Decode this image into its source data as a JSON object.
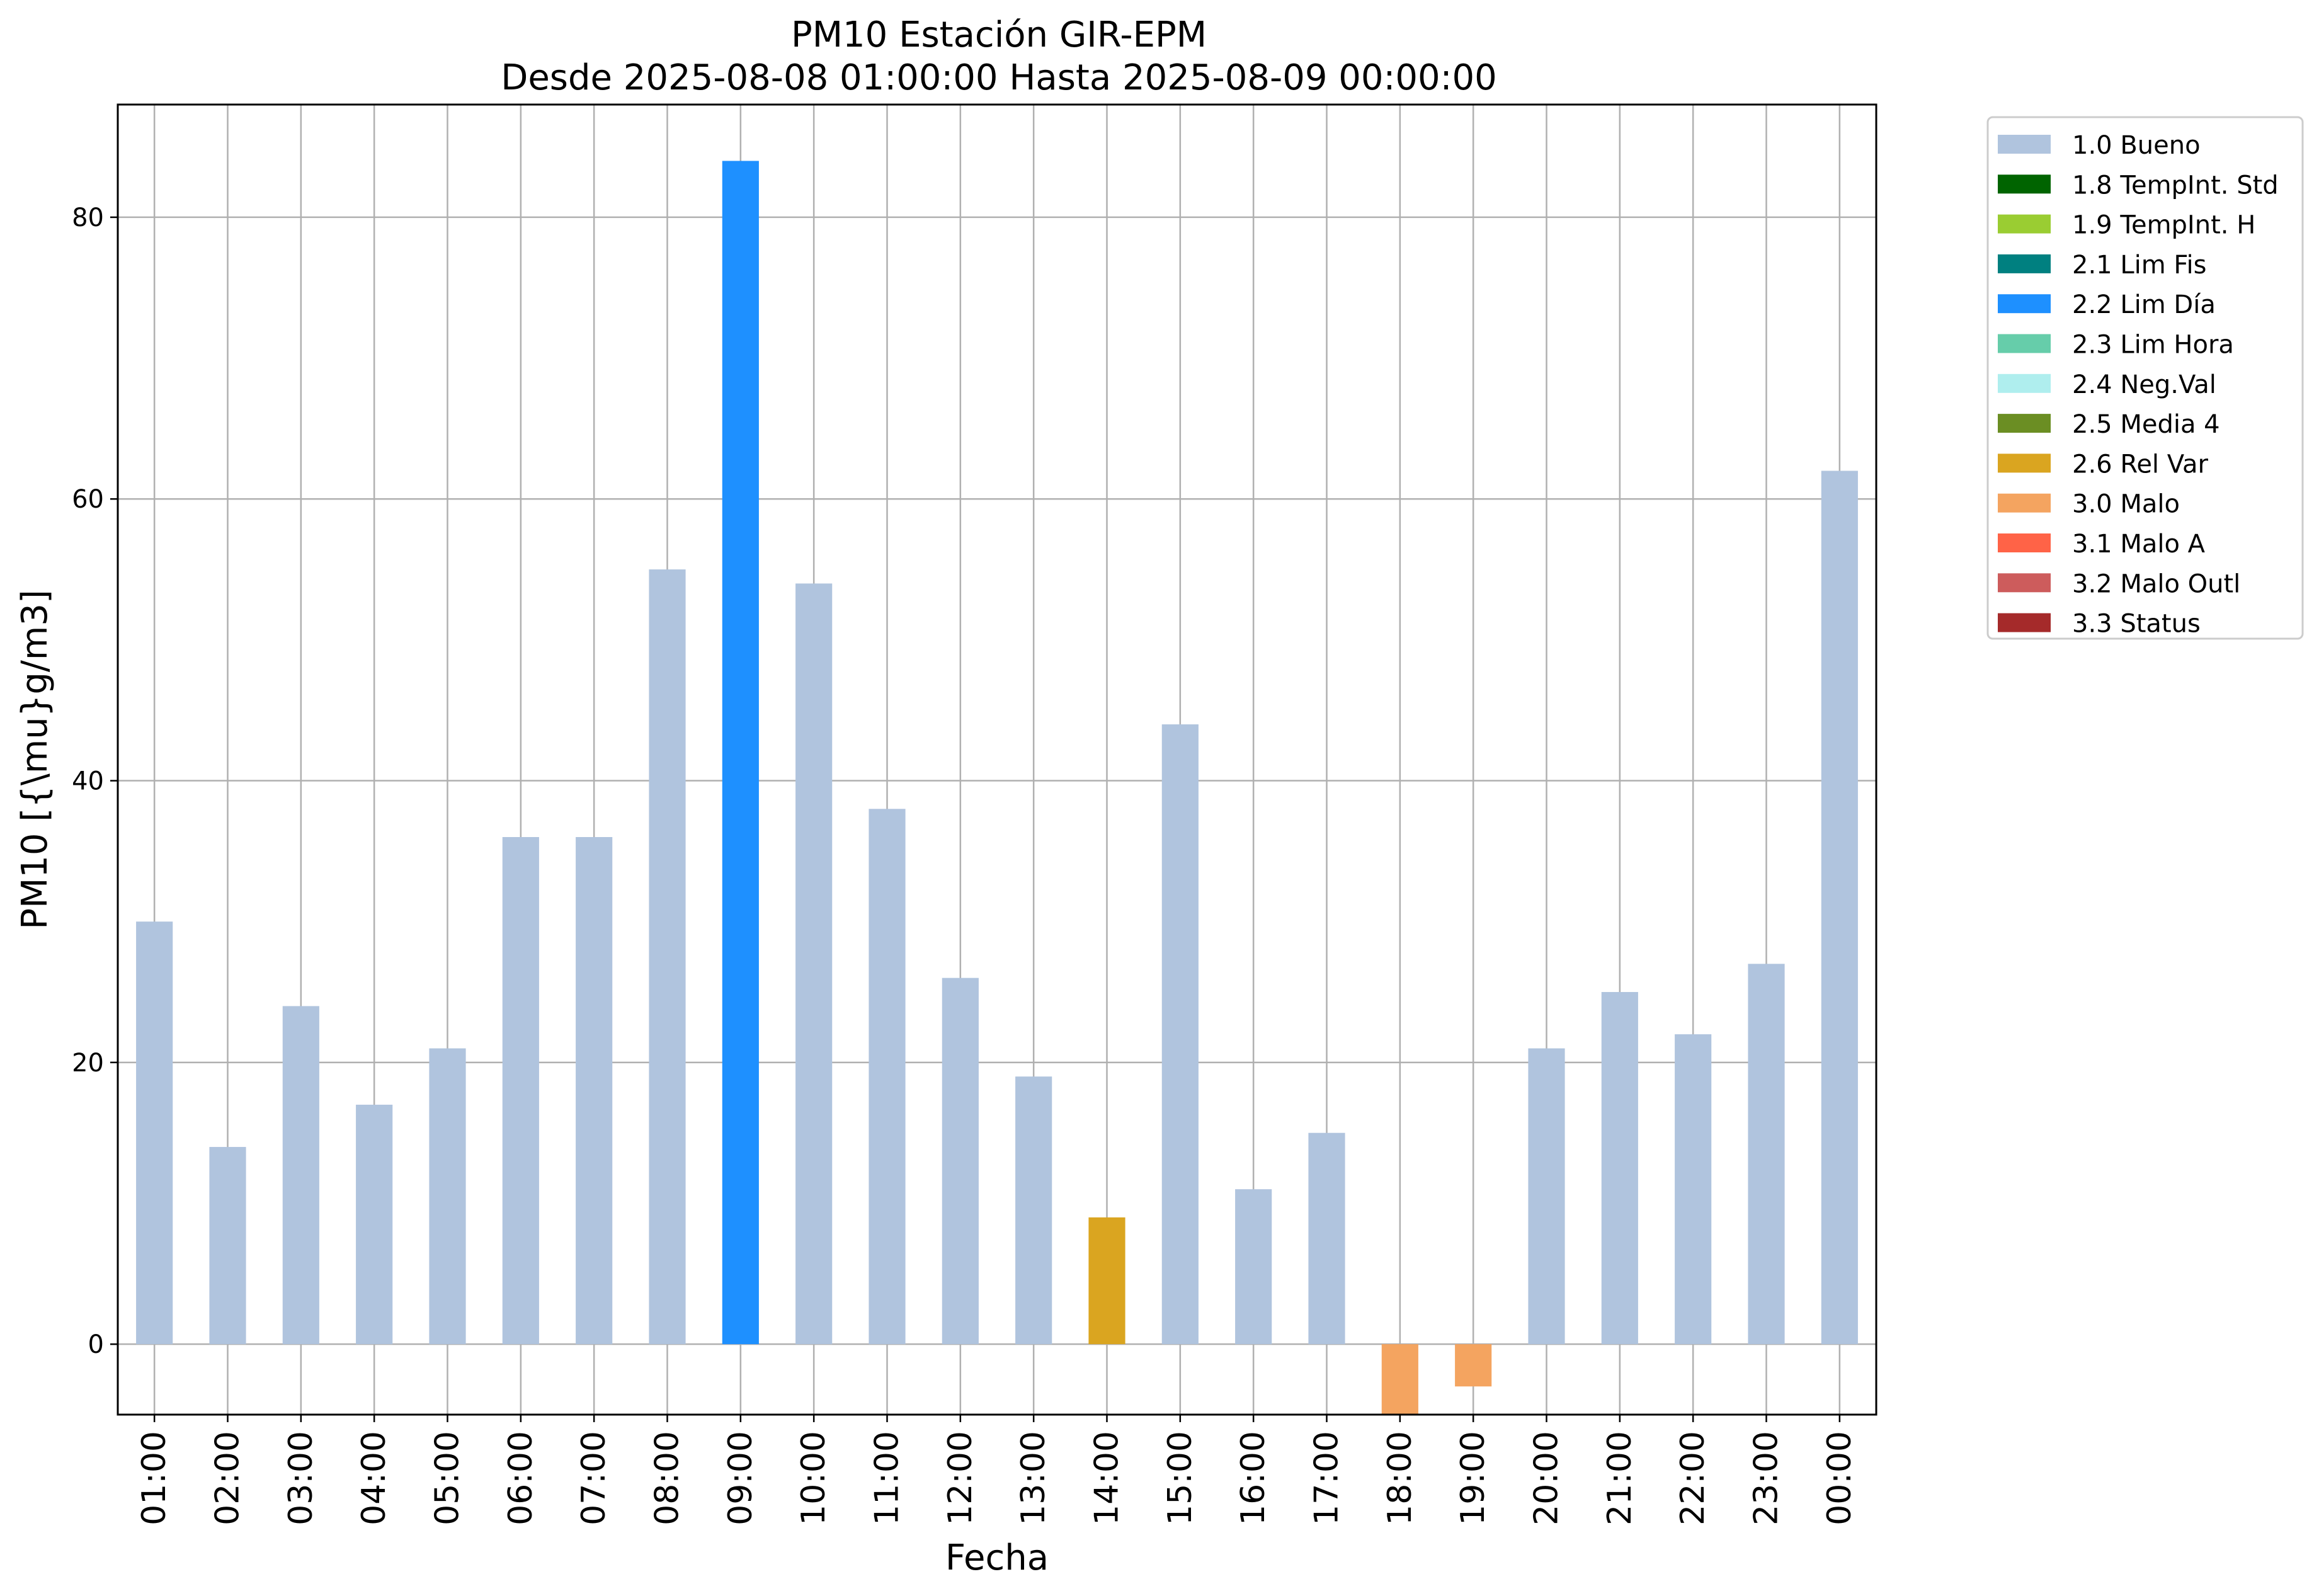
{
  "chart_data": {
    "type": "bar",
    "title": "PM10 Estación GIR-EPM",
    "subtitle": "Desde 2025-08-08 01:00:00 Hasta 2025-08-09 00:00:00",
    "xlabel": "Fecha",
    "ylabel": "PM10 [{\\mu}g/m3]",
    "ylim": [
      -5,
      88
    ],
    "yticks": [
      0,
      20,
      40,
      60,
      80
    ],
    "grid": true,
    "legend_position": "outside-right-top",
    "categories": [
      "01:00",
      "02:00",
      "03:00",
      "04:00",
      "05:00",
      "06:00",
      "07:00",
      "08:00",
      "09:00",
      "10:00",
      "11:00",
      "12:00",
      "13:00",
      "14:00",
      "15:00",
      "16:00",
      "17:00",
      "18:00",
      "19:00",
      "20:00",
      "21:00",
      "22:00",
      "23:00",
      "00:00"
    ],
    "values": [
      30,
      14,
      24,
      17,
      21,
      36,
      36,
      55,
      84,
      54,
      38,
      26,
      19,
      9,
      44,
      11,
      15,
      -5,
      -3,
      21,
      25,
      22,
      27,
      62
    ],
    "flags": [
      "1.0 Bueno",
      "1.0 Bueno",
      "1.0 Bueno",
      "1.0 Bueno",
      "1.0 Bueno",
      "1.0 Bueno",
      "1.0 Bueno",
      "1.0 Bueno",
      "2.2 Lim Día",
      "1.0 Bueno",
      "1.0 Bueno",
      "1.0 Bueno",
      "1.0 Bueno",
      "2.6 Rel Var",
      "1.0 Bueno",
      "1.0 Bueno",
      "1.0 Bueno",
      "3.0 Malo",
      "3.0 Malo",
      "1.0 Bueno",
      "1.0 Bueno",
      "1.0 Bueno",
      "1.0 Bueno",
      "1.0 Bueno"
    ],
    "legend": [
      {
        "label": "1.0 Bueno",
        "color": "#b0c4de"
      },
      {
        "label": "1.8 TempInt. Std",
        "color": "#006400"
      },
      {
        "label": "1.9 TempInt. H",
        "color": "#9acd32"
      },
      {
        "label": "2.1 Lim Fis",
        "color": "#008080"
      },
      {
        "label": "2.2 Lim Día",
        "color": "#1e90ff"
      },
      {
        "label": "2.3 Lim Hora",
        "color": "#66cdaa"
      },
      {
        "label": "2.4 Neg.Val",
        "color": "#afeeee"
      },
      {
        "label": "2.5 Media 4",
        "color": "#6b8e23"
      },
      {
        "label": "2.6 Rel Var",
        "color": "#daa520"
      },
      {
        "label": "3.0 Malo",
        "color": "#f4a460"
      },
      {
        "label": "3.1 Malo A",
        "color": "#ff6347"
      },
      {
        "label": "3.2 Malo Outl",
        "color": "#cd5c5c"
      },
      {
        "label": "3.3 Status",
        "color": "#a52a2a"
      }
    ]
  }
}
